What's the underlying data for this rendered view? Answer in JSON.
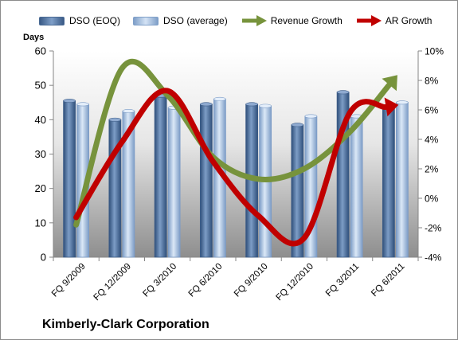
{
  "chart_data": {
    "type": "bar",
    "title": "Kimberly-Clark Corporation",
    "ylabel": "Days",
    "ylim": [
      0,
      60
    ],
    "y2lim": [
      -4,
      10
    ],
    "yticks": [
      "0",
      "10",
      "20",
      "30",
      "40",
      "50",
      "60"
    ],
    "y2ticks": [
      "-4%",
      "-2%",
      "0%",
      "2%",
      "4%",
      "6%",
      "8%",
      "10%"
    ],
    "categories": [
      "FQ 9/2009",
      "FQ 12/2009",
      "FQ 3/2010",
      "FQ 6/2010",
      "FQ 9/2010",
      "FQ 12/2010",
      "FQ 3/2011",
      "FQ 6/2011"
    ],
    "series": [
      {
        "name": "DSO (EOQ)",
        "kind": "bar",
        "axis": "left",
        "color": "#4f6f9c",
        "values": [
          45.5,
          40.0,
          47.0,
          44.5,
          44.5,
          38.5,
          48.0,
          44.0
        ]
      },
      {
        "name": "DSO (average)",
        "kind": "bar",
        "axis": "left",
        "color": "#9ab5d8",
        "values": [
          44.5,
          42.5,
          43.5,
          46.0,
          44.0,
          41.0,
          41.0,
          45.0
        ]
      },
      {
        "name": "Revenue Growth",
        "kind": "line",
        "axis": "right",
        "color": "#77933c",
        "values": [
          -1.8,
          8.8,
          7.0,
          2.8,
          1.3,
          2.0,
          4.5,
          8.2
        ]
      },
      {
        "name": "AR Growth",
        "kind": "line",
        "axis": "right",
        "color": "#c00000",
        "values": [
          -1.3,
          3.8,
          7.3,
          2.5,
          -1.2,
          -2.7,
          5.8,
          6.3
        ]
      }
    ],
    "legend_position": "top",
    "grid": false
  }
}
